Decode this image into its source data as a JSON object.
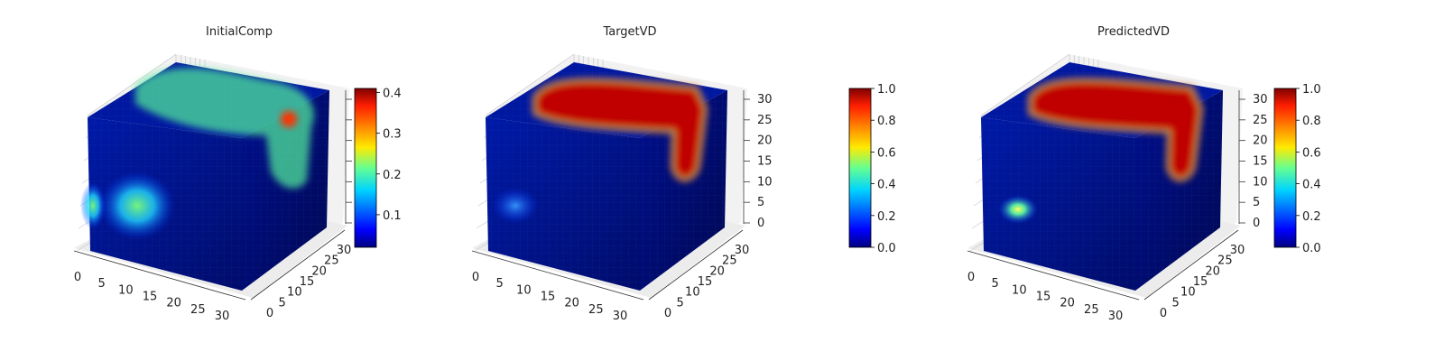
{
  "chart_data": [
    {
      "type": "heatmap",
      "title": "InitialComp",
      "x_ticks": [
        "0",
        "5",
        "10",
        "15",
        "20",
        "25",
        "30"
      ],
      "y_ticks": [
        "0",
        "5",
        "10",
        "15",
        "20",
        "25",
        "30"
      ],
      "z_ticks": [
        "",
        "",
        "",
        "",
        "",
        "",
        ""
      ],
      "colorbar": {
        "min": 0.02,
        "max": 0.41,
        "ticks": [
          "0.1",
          "0.2",
          "0.3",
          "0.4"
        ],
        "tick_values": [
          0.1,
          0.2,
          0.3,
          0.4
        ]
      },
      "colormap": "jet"
    },
    {
      "type": "heatmap",
      "title": "TargetVD",
      "x_ticks": [
        "0",
        "5",
        "10",
        "15",
        "20",
        "25",
        "30"
      ],
      "y_ticks": [
        "0",
        "5",
        "10",
        "15",
        "20",
        "25",
        "30"
      ],
      "z_ticks": [
        "0",
        "5",
        "10",
        "15",
        "20",
        "25",
        "30"
      ],
      "colorbar": {
        "min": 0.0,
        "max": 1.0,
        "ticks": [
          "0.0",
          "0.2",
          "0.4",
          "0.6",
          "0.8",
          "1.0"
        ],
        "tick_values": [
          0.0,
          0.2,
          0.4,
          0.6,
          0.8,
          1.0
        ]
      },
      "colormap": "jet"
    },
    {
      "type": "heatmap",
      "title": "PredictedVD",
      "x_ticks": [
        "0",
        "5",
        "10",
        "15",
        "20",
        "25",
        "30"
      ],
      "y_ticks": [
        "0",
        "5",
        "10",
        "15",
        "20",
        "25",
        "30"
      ],
      "z_ticks": [
        "0",
        "5",
        "10",
        "15",
        "20",
        "25",
        "30"
      ],
      "colorbar": {
        "min": 0.0,
        "max": 1.0,
        "ticks": [
          "0.0",
          "0.2",
          "0.4",
          "0.6",
          "0.8",
          "1.0"
        ],
        "tick_values": [
          0.0,
          0.2,
          0.4,
          0.6,
          0.8,
          1.0
        ]
      },
      "colormap": "jet"
    }
  ],
  "colors": {
    "background": "#ffffff",
    "pane": "#f2f2f2",
    "grid": "#c9c9c9",
    "text": "#222222",
    "cube_base": "#00158f"
  }
}
